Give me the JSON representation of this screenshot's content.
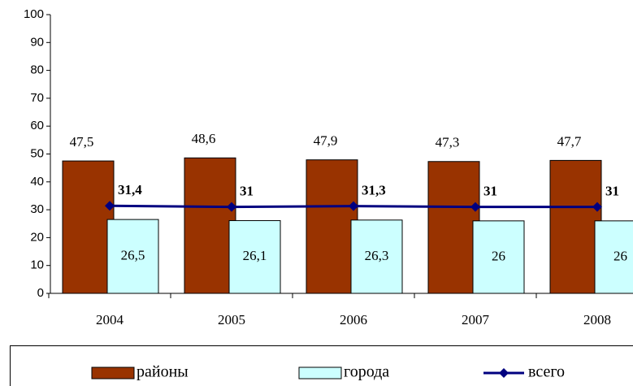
{
  "chart_data": {
    "type": "bar_line",
    "categories": [
      "2004",
      "2005",
      "2006",
      "2007",
      "2008"
    ],
    "series": [
      {
        "name": "районы",
        "type": "bar",
        "color": "#993300",
        "values": [
          47.5,
          48.6,
          47.9,
          47.3,
          47.7
        ],
        "value_labels": [
          "47,5",
          "48,6",
          "47,9",
          "47,3",
          "47,7"
        ]
      },
      {
        "name": "города",
        "type": "bar",
        "color": "#ccffff",
        "values": [
          26.5,
          26.1,
          26.3,
          26,
          26
        ],
        "value_labels": [
          "26,5",
          "26,1",
          "26,3",
          "26",
          "26"
        ]
      },
      {
        "name": "всего",
        "type": "line",
        "color": "#000080",
        "values": [
          31.4,
          31,
          31.3,
          31,
          31
        ],
        "value_labels": [
          "31,4",
          "31",
          "31,3",
          "31",
          "31"
        ]
      }
    ],
    "ylim": [
      0,
      100
    ],
    "yticks": [
      0,
      10,
      20,
      30,
      40,
      50,
      60,
      70,
      80,
      90,
      100
    ],
    "legend": "bottom"
  }
}
